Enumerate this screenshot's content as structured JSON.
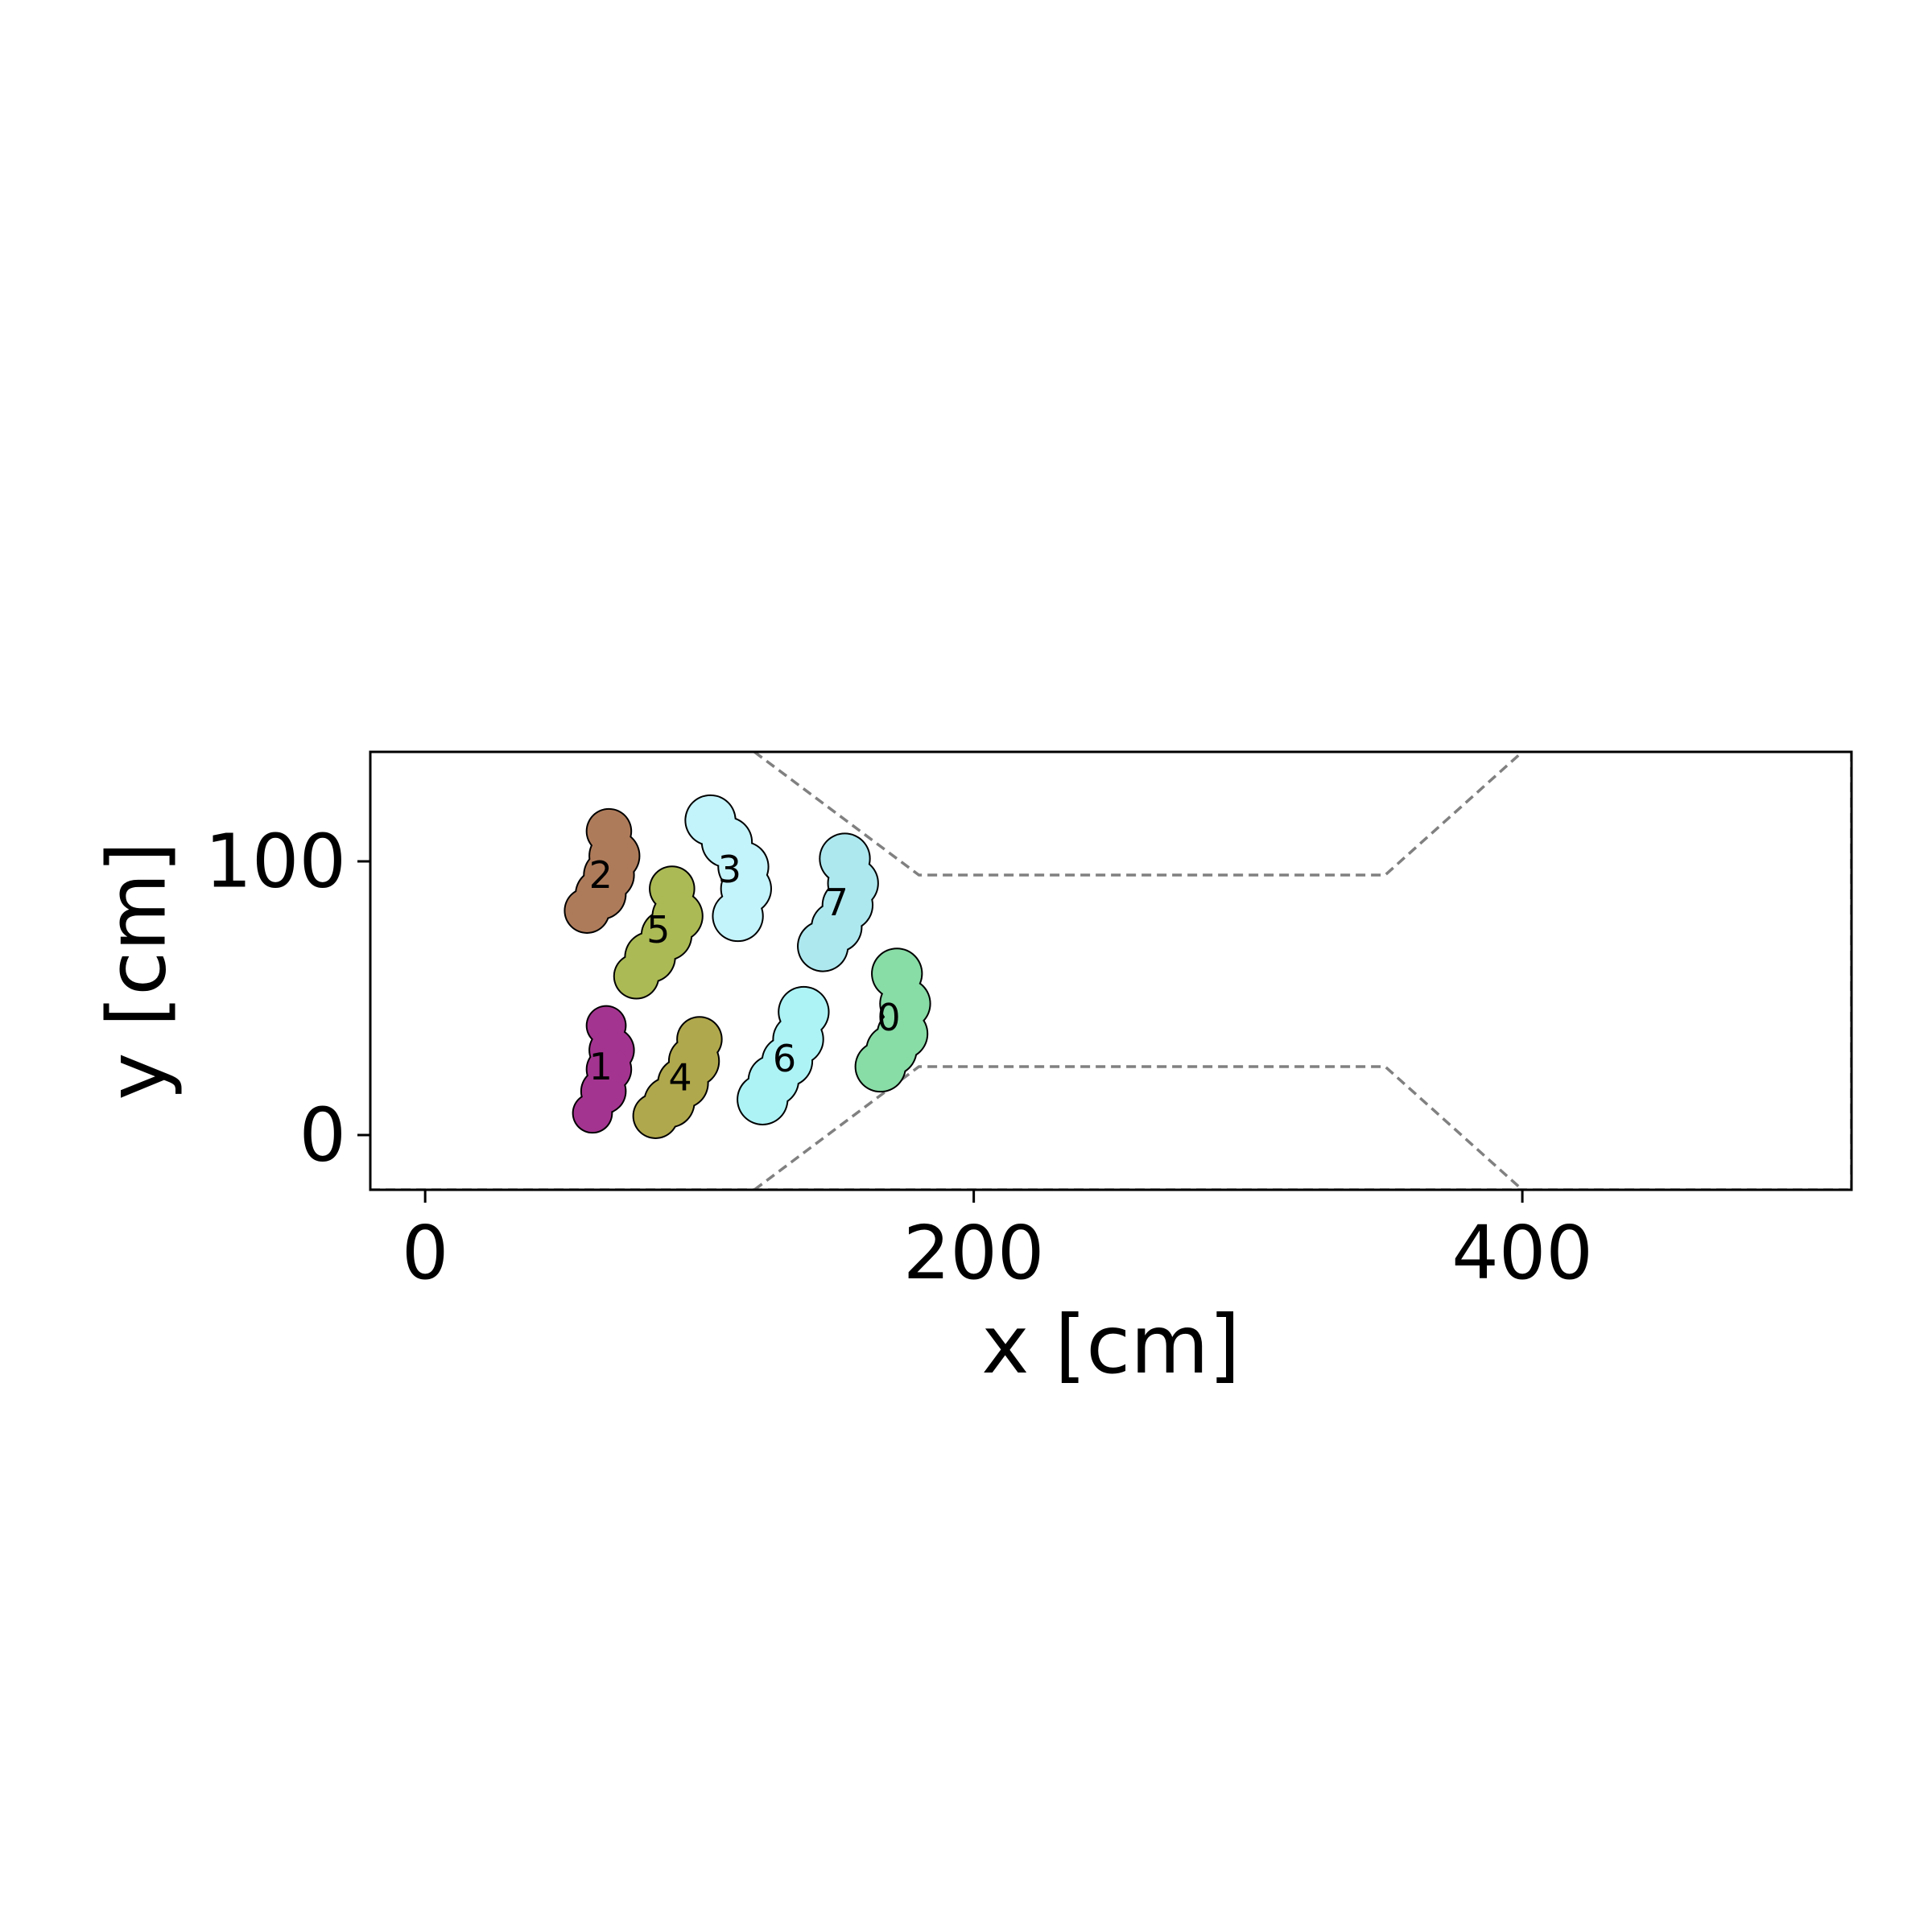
{
  "chart_data": {
    "type": "scatter",
    "title": "",
    "xlabel": "x [cm]",
    "ylabel": "y [cm]",
    "xlim": [
      -20,
      520
    ],
    "ylim": [
      -20,
      140
    ],
    "x_ticks": [
      "0",
      "200",
      "400"
    ],
    "x_tick_values": [
      0,
      200,
      400
    ],
    "y_ticks": [
      "0",
      "100"
    ],
    "y_tick_values": [
      0,
      100
    ],
    "grid": false,
    "legend": "none",
    "boundary_line_color": "#808080",
    "boundaries": [
      {
        "name": "upper-wall",
        "points": [
          [
            120,
            140
          ],
          [
            180,
            95
          ],
          [
            350,
            95
          ],
          [
            400,
            140
          ]
        ]
      },
      {
        "name": "lower-wall",
        "points": [
          [
            120,
            -20
          ],
          [
            180,
            25
          ],
          [
            350,
            25
          ],
          [
            400,
            -20
          ]
        ]
      },
      {
        "name": "bottom-edge",
        "points": [
          [
            -20,
            -20
          ],
          [
            520,
            -20
          ]
        ]
      },
      {
        "name": "right-edge",
        "points": [
          [
            520,
            -20
          ],
          [
            520,
            140
          ]
        ]
      }
    ],
    "agents": [
      {
        "label": "0",
        "color": "#88dca6",
        "x": 169,
        "y": 43,
        "circles": [
          [
            172,
            59,
            9
          ],
          [
            175,
            48,
            9
          ],
          [
            174,
            37,
            9
          ],
          [
            170,
            31,
            9
          ],
          [
            166,
            25,
            9
          ]
        ]
      },
      {
        "label": "1",
        "color": "#a3348f",
        "x": 64,
        "y": 25,
        "circles": [
          [
            66,
            40,
            7
          ],
          [
            68,
            31,
            8
          ],
          [
            67,
            24,
            8
          ],
          [
            65,
            16,
            8
          ],
          [
            61,
            8,
            7
          ]
        ]
      },
      {
        "label": "2",
        "color": "#ae7b5a",
        "x": 64,
        "y": 95,
        "circles": [
          [
            67,
            111,
            8
          ],
          [
            69,
            102,
            9
          ],
          [
            67,
            95,
            9
          ],
          [
            64,
            88,
            9
          ],
          [
            59,
            82,
            8
          ]
        ]
      },
      {
        "label": "3",
        "color": "#c3f3fb",
        "x": 111,
        "y": 97,
        "circles": [
          [
            104,
            115,
            9
          ],
          [
            110,
            107,
            9
          ],
          [
            116,
            98,
            9
          ],
          [
            117,
            90,
            9
          ],
          [
            114,
            80,
            9
          ]
        ]
      },
      {
        "label": "4",
        "color": "#b0a84c",
        "x": 93,
        "y": 21,
        "circles": [
          [
            100,
            35,
            8
          ],
          [
            98,
            27,
            9
          ],
          [
            94,
            19,
            9
          ],
          [
            89,
            12,
            9
          ],
          [
            84,
            7,
            8
          ]
        ]
      },
      {
        "label": "5",
        "color": "#acba55",
        "x": 85,
        "y": 75,
        "circles": [
          [
            90,
            90,
            8
          ],
          [
            92,
            80,
            9
          ],
          [
            88,
            73,
            9
          ],
          [
            82,
            65,
            9
          ],
          [
            77,
            58,
            8
          ]
        ]
      },
      {
        "label": "6",
        "color": "#adf3f6",
        "x": 131,
        "y": 28,
        "circles": [
          [
            138,
            45,
            9
          ],
          [
            136,
            35,
            9
          ],
          [
            132,
            27,
            9
          ],
          [
            127,
            20,
            9
          ],
          [
            123,
            13,
            9
          ]
        ]
      },
      {
        "label": "7",
        "color": "#ade8ef",
        "x": 150,
        "y": 85,
        "circles": [
          [
            153,
            101,
            9
          ],
          [
            156,
            92,
            9
          ],
          [
            154,
            84,
            9
          ],
          [
            150,
            76,
            9
          ],
          [
            145,
            69,
            9
          ]
        ]
      }
    ]
  }
}
